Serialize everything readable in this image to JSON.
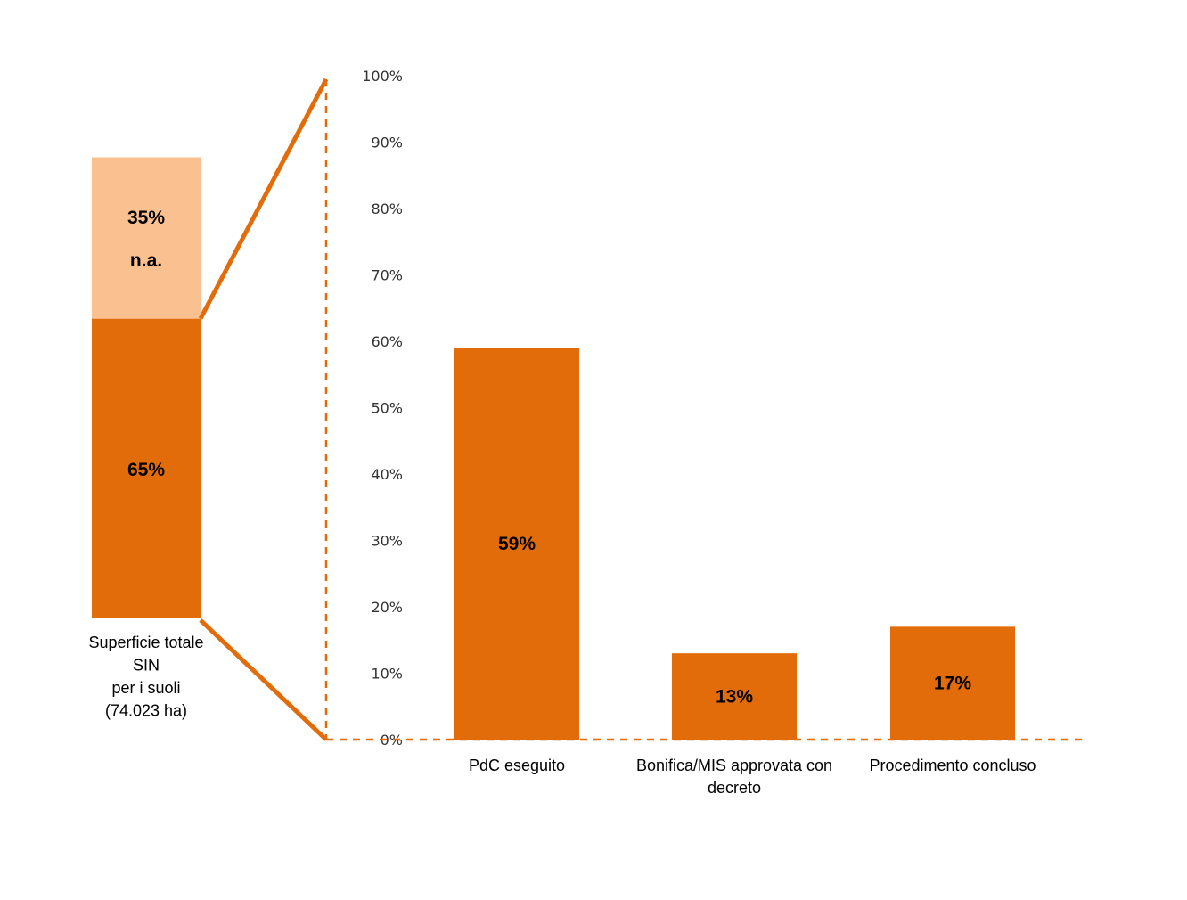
{
  "chart_data": [
    {
      "type": "bar",
      "stacked": true,
      "categories": [
        "Superficie totale SIN per i suoli (74.023 ha)"
      ],
      "category_lines": [
        "Superficie totale",
        "SIN",
        "per i suoli",
        "(74.023 ha)"
      ],
      "series": [
        {
          "name": "",
          "values": [
            65
          ],
          "label": "65%",
          "color": "#E36C0A"
        },
        {
          "name": "",
          "values": [
            35
          ],
          "label": "35%",
          "label_extra": "n.a.",
          "color": "#FAC090"
        }
      ]
    },
    {
      "type": "bar",
      "categories": [
        "PdC eseguito",
        "Bonifica/MIS approvata con decreto",
        "Procedimento concluso"
      ],
      "category_lines": [
        [
          "PdC eseguito"
        ],
        [
          "Bonifica/MIS approvata con",
          "decreto"
        ],
        [
          "Procedimento concluso"
        ]
      ],
      "values": [
        59,
        13,
        17
      ],
      "labels": [
        "59%",
        "13%",
        "17%"
      ],
      "ylim": [
        0,
        100
      ],
      "yticks": [
        "0%",
        "10%",
        "20%",
        "30%",
        "40%",
        "50%",
        "60%",
        "70%",
        "80%",
        "90%",
        "100%"
      ],
      "color": "#E36C0A",
      "xlabel": "",
      "ylabel": ""
    }
  ]
}
